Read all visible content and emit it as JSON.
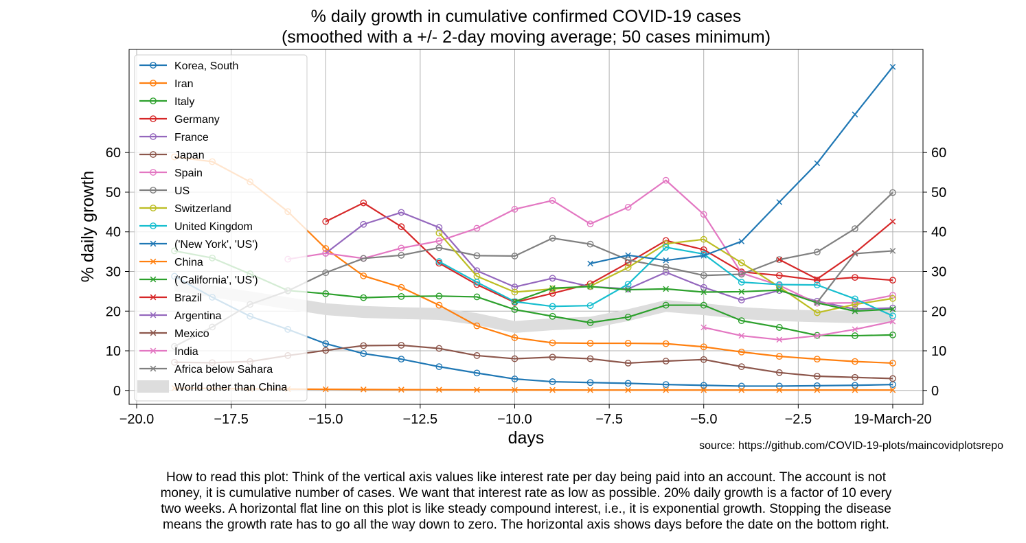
{
  "chart_data": {
    "type": "line",
    "title": [
      "% daily growth in cumulative confirmed COVID-19 cases",
      "(smoothed with a +/- 2-day moving average; 50 cases minimum)"
    ],
    "xlabel": "days",
    "ylabel": "% daily growth",
    "xlim": [
      -20.2,
      0.8
    ],
    "ylim": [
      -3.5,
      86
    ],
    "x_ticks": [
      {
        "value": -20,
        "label": "−20.0"
      },
      {
        "value": -17.5,
        "label": "−17.5"
      },
      {
        "value": -15,
        "label": "−15.0"
      },
      {
        "value": -12.5,
        "label": "−12.5"
      },
      {
        "value": -10,
        "label": "−10.0"
      },
      {
        "value": -7.5,
        "label": "−7.5"
      },
      {
        "value": -5,
        "label": "−5.0"
      },
      {
        "value": -2.5,
        "label": "−2.5"
      },
      {
        "value": 0,
        "label": "19-March-20"
      }
    ],
    "y_ticks": [
      0,
      10,
      20,
      30,
      40,
      50,
      60
    ],
    "grid": true,
    "legend_position": "upper-left",
    "source": "source: https://github.com/COVID-19-plots/maincovidplotsrepo",
    "note": [
      "How to read this plot: Think of the vertical axis values like interest rate per day being paid into an account. The account is not",
      "money, it is cumulative number of cases. We want that interest rate as low as possible.  20% daily growth is a factor of 10 every",
      "two weeks. A horizontal flat line on this plot is like steady compound interest, i.e., it is exponential growth. Stopping the disease",
      "means the growth rate has to go all the way down to zero. The horizontal axis shows days before the date on the bottom right."
    ],
    "band": {
      "name": "World other than China",
      "color": "#dddddd",
      "x": [
        -19,
        -18,
        -17,
        -16,
        -15,
        -14,
        -13,
        -12,
        -11,
        -10,
        -9,
        -8,
        -7,
        -6,
        -5,
        -4,
        -3,
        -2,
        -1,
        0
      ],
      "y_low": [
        25,
        23.5,
        22,
        20.5,
        19,
        18.3,
        18,
        17.8,
        16.5,
        14.5,
        15.2,
        15.6,
        17.5,
        19.8,
        19,
        18,
        17.5,
        17.2,
        17,
        17.2
      ],
      "y_high": [
        28,
        26.5,
        25,
        23.5,
        22,
        21.3,
        21,
        20.8,
        19.5,
        17.5,
        18.2,
        18.6,
        20.5,
        22.8,
        22,
        21,
        20.5,
        20.2,
        20,
        20.2
      ]
    },
    "series": [
      {
        "name": "Korea, South",
        "color": "#1f77b4",
        "marker": "o",
        "x": [
          -19,
          -18,
          -17,
          -16,
          -15,
          -14,
          -13,
          -12,
          -11,
          -10,
          -9,
          -8,
          -7,
          -6,
          -5,
          -4,
          -3,
          -2,
          -1,
          0
        ],
        "y": [
          28.8,
          23.5,
          18.7,
          15.4,
          11.8,
          9.3,
          7.9,
          6.0,
          4.4,
          2.9,
          2.2,
          2.0,
          1.8,
          1.5,
          1.3,
          1.1,
          1.1,
          1.2,
          1.3,
          1.5
        ]
      },
      {
        "name": "Iran",
        "color": "#ff7f0e",
        "marker": "o",
        "x": [
          -19,
          -18,
          -17,
          -16,
          -15,
          -14,
          -13,
          -12,
          -11,
          -10,
          -9,
          -8,
          -7,
          -6,
          -5,
          -4,
          -3,
          -2,
          -1,
          0
        ],
        "y": [
          58.9,
          57.7,
          52.6,
          45.1,
          35.8,
          28.9,
          26.0,
          21.5,
          16.3,
          13.3,
          12.0,
          11.9,
          11.9,
          11.8,
          11.0,
          9.7,
          8.6,
          7.9,
          7.3,
          6.9
        ]
      },
      {
        "name": "Italy",
        "color": "#2ca02c",
        "marker": "o",
        "x": [
          -19,
          -18,
          -17,
          -16,
          -15,
          -14,
          -13,
          -12,
          -11,
          -10,
          -9,
          -8,
          -7,
          -6,
          -5,
          -4,
          -3,
          -2,
          -1,
          0
        ],
        "y": [
          35.2,
          33.4,
          29.4,
          25.2,
          24.4,
          23.4,
          23.7,
          23.8,
          23.6,
          20.4,
          18.7,
          17.1,
          18.5,
          21.5,
          21.5,
          17.6,
          15.9,
          13.9,
          13.8,
          14.0
        ]
      },
      {
        "name": "Germany",
        "color": "#d62728",
        "marker": "o",
        "x": [
          -15,
          -14,
          -13,
          -12,
          -11,
          -10,
          -9,
          -8,
          -7,
          -6,
          -5,
          -4,
          -3,
          -2,
          -1,
          0
        ],
        "y": [
          42.6,
          47.3,
          41.3,
          32.1,
          26.7,
          22.2,
          24.5,
          26.9,
          32.2,
          37.8,
          35.5,
          29.9,
          29.0,
          27.8,
          28.5,
          27.8
        ]
      },
      {
        "name": "France",
        "color": "#9467bd",
        "marker": "o",
        "x": [
          -15,
          -14,
          -13,
          -12,
          -11,
          -10,
          -9,
          -8,
          -7,
          -6,
          -5,
          -4,
          -3,
          -2,
          -1,
          0
        ],
        "y": [
          34.6,
          41.9,
          44.9,
          41.1,
          30.2,
          26.1,
          28.3,
          26.2,
          25.6,
          29.8,
          26.0,
          22.8,
          25.2,
          22.5,
          20.5,
          20.8
        ]
      },
      {
        "name": "Japan",
        "color": "#8c564b",
        "marker": "o",
        "x": [
          -19,
          -18,
          -17,
          -16,
          -15,
          -14,
          -13,
          -12,
          -11,
          -10,
          -9,
          -8,
          -7,
          -6,
          -5,
          -4,
          -3,
          -2,
          -1,
          0
        ],
        "y": [
          7.1,
          7.0,
          7.3,
          8.8,
          10.1,
          11.3,
          11.4,
          10.6,
          8.8,
          8.0,
          8.4,
          8.0,
          6.9,
          7.4,
          7.8,
          6.0,
          4.5,
          3.6,
          3.3,
          3.0
        ]
      },
      {
        "name": "Spain",
        "color": "#e377c2",
        "marker": "o",
        "x": [
          -16,
          -15,
          -14,
          -13,
          -12,
          -11,
          -10,
          -9,
          -8,
          -7,
          -6,
          -5,
          -4,
          -3,
          -2,
          -1,
          0
        ],
        "y": [
          33.1,
          34.6,
          33.3,
          35.9,
          37.7,
          40.9,
          45.7,
          47.9,
          42.0,
          46.2,
          53.0,
          44.4,
          29.6,
          26.5,
          22.0,
          22.1,
          24.0
        ]
      },
      {
        "name": "US",
        "color": "#7f7f7f",
        "marker": "o",
        "x": [
          -19,
          -18,
          -17,
          -16,
          -15,
          -14,
          -13,
          -12,
          -11,
          -10,
          -9,
          -8,
          -7,
          -6,
          -5,
          -4,
          -3,
          -2,
          -1,
          0
        ],
        "y": [
          11.1,
          16.0,
          21.7,
          25.1,
          29.7,
          33.3,
          34.1,
          36.0,
          34.0,
          33.9,
          38.4,
          36.9,
          32.9,
          31.1,
          29.0,
          29.3,
          33.0,
          34.9,
          40.8,
          49.9
        ]
      },
      {
        "name": "Switzerland",
        "color": "#bcbd22",
        "marker": "o",
        "x": [
          -12,
          -11,
          -10,
          -9,
          -8,
          -7,
          -6,
          -5,
          -4,
          -3,
          -2,
          -1,
          0
        ],
        "y": [
          39.7,
          28.8,
          24.8,
          25.6,
          26.3,
          31.0,
          37.0,
          38.1,
          32.2,
          26.1,
          19.6,
          21.7,
          23.2
        ]
      },
      {
        "name": "United Kingdom",
        "color": "#17becf",
        "marker": "o",
        "x": [
          -12,
          -11,
          -10,
          -9,
          -8,
          -7,
          -6,
          -5,
          -4,
          -3,
          -2,
          -1,
          0
        ],
        "y": [
          32.5,
          27.3,
          22.4,
          21.2,
          21.4,
          26.8,
          36.1,
          34.4,
          27.3,
          26.7,
          26.6,
          23.1,
          18.8
        ]
      },
      {
        "name": "('New York', 'US')",
        "color": "#1f77b4",
        "marker": "x",
        "x": [
          -8,
          -7,
          -6,
          -5,
          -4,
          -3,
          -2,
          -1,
          0
        ],
        "y": [
          32.0,
          34.1,
          32.8,
          34.0,
          37.6,
          47.5,
          57.3,
          69.6,
          81.6
        ]
      },
      {
        "name": "China",
        "color": "#ff7f0e",
        "marker": "x",
        "x": [
          -19,
          -18,
          -17,
          -16,
          -15,
          -14,
          -13,
          -12,
          -11,
          -10,
          -9,
          -8,
          -7,
          -6,
          -5,
          -4,
          -3,
          -2,
          -1,
          0
        ],
        "y": [
          0.6,
          0.5,
          0.4,
          0.35,
          0.3,
          0.25,
          0.2,
          0.18,
          0.15,
          0.13,
          0.12,
          0.1,
          0.1,
          0.1,
          0.1,
          0.1,
          0.1,
          0.1,
          0.1,
          0.1
        ]
      },
      {
        "name": "('California', 'US')",
        "color": "#2ca02c",
        "marker": "x",
        "x": [
          -10,
          -9,
          -8,
          -7,
          -6,
          -5,
          -4,
          -3,
          -2,
          -1,
          0
        ],
        "y": [
          22.4,
          25.8,
          26.2,
          25.4,
          25.6,
          24.8,
          24.9,
          25.3,
          22.1,
          20.0,
          20.5
        ]
      },
      {
        "name": "Brazil",
        "color": "#d62728",
        "marker": "x",
        "x": [
          -3,
          -2,
          -1,
          0
        ],
        "y": [
          33.0,
          28.1,
          34.7,
          42.6
        ]
      },
      {
        "name": "Argentina",
        "color": "#9467bd",
        "marker": "x",
        "x": [],
        "y": []
      },
      {
        "name": "Mexico",
        "color": "#8c564b",
        "marker": "x",
        "x": [],
        "y": []
      },
      {
        "name": "India",
        "color": "#e377c2",
        "marker": "x",
        "x": [
          -5,
          -4,
          -3,
          -2,
          -1,
          0
        ],
        "y": [
          15.9,
          13.8,
          12.8,
          13.8,
          15.4,
          17.4
        ]
      },
      {
        "name": "Africa below Sahara",
        "color": "#7f7f7f",
        "marker": "x",
        "x": [
          -2,
          -1,
          0
        ],
        "y": [
          22.2,
          34.5,
          35.2
        ]
      }
    ]
  }
}
